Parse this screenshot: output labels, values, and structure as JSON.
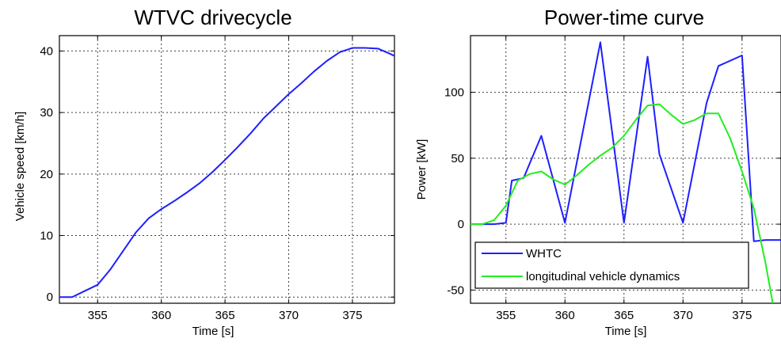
{
  "chart_data": [
    {
      "type": "line",
      "title": "WTVC drivecycle",
      "xlabel": "Time [s]",
      "ylabel": "Vehicle speed [km/h]",
      "xlim": [
        352,
        378.3
      ],
      "ylim": [
        -1,
        42.5
      ],
      "xticks": [
        355,
        360,
        365,
        370,
        375
      ],
      "yticks": [
        0,
        10,
        20,
        30,
        40
      ],
      "grid": true,
      "series": [
        {
          "color": "#1f1fff",
          "x": [
            352,
            353,
            354,
            355,
            356,
            357,
            358,
            359,
            360,
            361,
            362,
            363,
            364,
            365,
            366,
            367,
            368,
            369,
            370,
            371,
            372,
            373,
            374,
            375,
            376,
            377,
            378,
            378.3
          ],
          "y": [
            0,
            0,
            1,
            2,
            4.5,
            7.5,
            10.5,
            12.8,
            14.3,
            15.6,
            17,
            18.5,
            20.3,
            22.3,
            24.4,
            26.6,
            29,
            31,
            33,
            34.8,
            36.7,
            38.4,
            39.8,
            40.5,
            40.5,
            40.4,
            39.5,
            39.2
          ]
        }
      ]
    },
    {
      "type": "line",
      "title": "Power-time curve",
      "xlabel": "Time [s]",
      "ylabel": "Power [kW]",
      "xlim": [
        352,
        378.3
      ],
      "ylim": [
        -60,
        143
      ],
      "xticks": [
        355,
        360,
        365,
        370,
        375
      ],
      "yticks": [
        -50,
        0,
        50,
        100
      ],
      "grid": true,
      "legend_position": "bottom-left",
      "series": [
        {
          "name": "WHTC",
          "color": "#1f1fff",
          "x": [
            352,
            354,
            355,
            355.5,
            356.5,
            358,
            360,
            363,
            365,
            367,
            368,
            370,
            372,
            373,
            375,
            376,
            377,
            378.3
          ],
          "y": [
            0,
            0,
            1,
            33,
            35,
            67,
            1,
            138,
            1,
            127,
            53,
            1,
            92,
            120,
            128,
            -13,
            -12,
            -12
          ]
        },
        {
          "name": "longitudinal vehicle dynamics",
          "color": "#22ee22",
          "x": [
            352,
            353,
            354,
            355,
            356,
            357,
            358,
            359,
            360,
            361,
            362,
            363,
            364,
            365,
            366,
            367,
            368,
            369,
            370,
            371,
            372,
            373,
            374,
            375,
            376,
            377,
            377.6
          ],
          "y": [
            0,
            0,
            3,
            14,
            33,
            38,
            40,
            34,
            30,
            37,
            45,
            52,
            58,
            67,
            79,
            90,
            91,
            83,
            76,
            79,
            84,
            84,
            65,
            40,
            12,
            -30,
            -60
          ]
        }
      ]
    }
  ]
}
